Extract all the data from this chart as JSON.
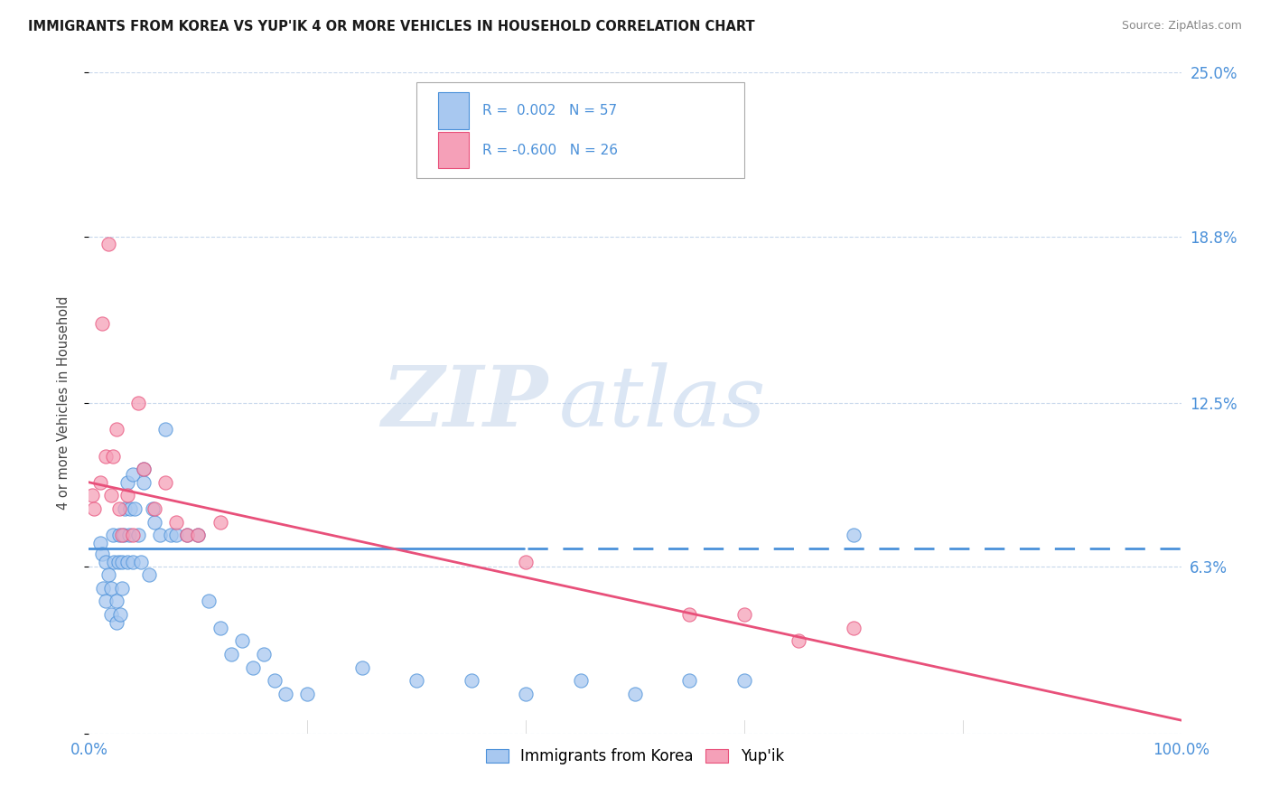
{
  "title": "IMMIGRANTS FROM KOREA VS YUP'IK 4 OR MORE VEHICLES IN HOUSEHOLD CORRELATION CHART",
  "source": "Source: ZipAtlas.com",
  "ylabel": "4 or more Vehicles in Household",
  "xlim": [
    0,
    100
  ],
  "ylim": [
    0,
    25
  ],
  "yticks": [
    0,
    6.3,
    12.5,
    18.8,
    25.0
  ],
  "ytick_labels": [
    "",
    "6.3%",
    "12.5%",
    "18.8%",
    "25.0%"
  ],
  "xtick_labels": [
    "0.0%",
    "100.0%"
  ],
  "legend_korea": "Immigrants from Korea",
  "legend_yupik": "Yup'ik",
  "r_korea": "0.002",
  "n_korea": "57",
  "r_yupik": "-0.600",
  "n_yupik": "26",
  "color_korea": "#a8c8f0",
  "color_yupik": "#f5a0b8",
  "line_color_korea": "#4a90d9",
  "line_color_yupik": "#e8507a",
  "watermark_zip": "ZIP",
  "watermark_atlas": "atlas",
  "korea_trend_slope": 0.0,
  "korea_trend_intercept": 7.0,
  "yupik_trend_slope": -0.09,
  "yupik_trend_intercept": 9.5,
  "korea_x": [
    1.0,
    1.2,
    1.3,
    1.5,
    1.5,
    1.8,
    2.0,
    2.0,
    2.2,
    2.3,
    2.5,
    2.5,
    2.7,
    2.8,
    2.9,
    3.0,
    3.0,
    3.2,
    3.3,
    3.5,
    3.5,
    3.7,
    3.8,
    4.0,
    4.0,
    4.2,
    4.5,
    4.8,
    5.0,
    5.0,
    5.5,
    5.8,
    6.0,
    6.5,
    7.0,
    7.5,
    8.0,
    9.0,
    10.0,
    11.0,
    12.0,
    13.0,
    14.0,
    15.0,
    16.0,
    17.0,
    18.0,
    20.0,
    25.0,
    30.0,
    35.0,
    40.0,
    45.0,
    50.0,
    55.0,
    60.0,
    70.0
  ],
  "korea_y": [
    7.2,
    6.8,
    5.5,
    6.5,
    5.0,
    6.0,
    4.5,
    5.5,
    7.5,
    6.5,
    5.0,
    4.2,
    6.5,
    7.5,
    4.5,
    5.5,
    6.5,
    7.5,
    8.5,
    6.5,
    9.5,
    7.5,
    8.5,
    6.5,
    9.8,
    8.5,
    7.5,
    6.5,
    10.0,
    9.5,
    6.0,
    8.5,
    8.0,
    7.5,
    11.5,
    7.5,
    7.5,
    7.5,
    7.5,
    5.0,
    4.0,
    3.0,
    3.5,
    2.5,
    3.0,
    2.0,
    1.5,
    1.5,
    2.5,
    2.0,
    2.0,
    1.5,
    2.0,
    1.5,
    2.0,
    2.0,
    7.5
  ],
  "yupik_x": [
    0.3,
    0.5,
    1.0,
    1.2,
    1.5,
    1.8,
    2.0,
    2.2,
    2.5,
    2.8,
    3.0,
    3.5,
    4.0,
    4.5,
    5.0,
    6.0,
    7.0,
    8.0,
    9.0,
    10.0,
    12.0,
    40.0,
    55.0,
    60.0,
    65.0,
    70.0
  ],
  "yupik_y": [
    9.0,
    8.5,
    9.5,
    15.5,
    10.5,
    18.5,
    9.0,
    10.5,
    11.5,
    8.5,
    7.5,
    9.0,
    7.5,
    12.5,
    10.0,
    8.5,
    9.5,
    8.0,
    7.5,
    7.5,
    8.0,
    6.5,
    4.5,
    4.5,
    3.5,
    4.0
  ]
}
